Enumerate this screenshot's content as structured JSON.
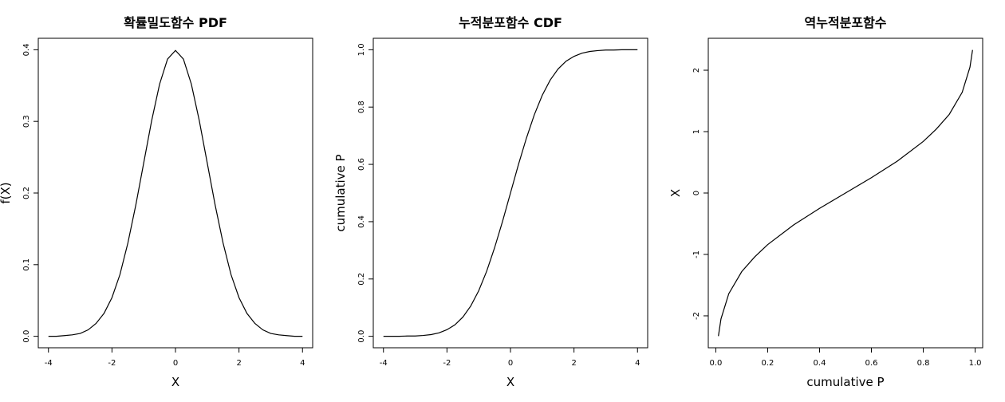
{
  "chart_data": [
    {
      "type": "line",
      "title": "확률밀도함수 PDF",
      "x_label": "X",
      "y_label": "f(X)",
      "color": "#000000",
      "x": [
        -4,
        -3.75,
        -3.5,
        -3.25,
        -3,
        -2.75,
        -2.5,
        -2.25,
        -2,
        -1.75,
        -1.5,
        -1.25,
        -1,
        -0.75,
        -0.5,
        -0.25,
        0,
        0.25,
        0.5,
        0.75,
        1,
        1.25,
        1.5,
        1.75,
        2,
        2.25,
        2.5,
        2.75,
        3,
        3.25,
        3.5,
        3.75,
        4
      ],
      "values": [
        0.0,
        0.0,
        0.001,
        0.002,
        0.004,
        0.009,
        0.018,
        0.032,
        0.054,
        0.086,
        0.13,
        0.183,
        0.242,
        0.301,
        0.352,
        0.387,
        0.399,
        0.387,
        0.352,
        0.301,
        0.242,
        0.183,
        0.13,
        0.086,
        0.054,
        0.032,
        0.018,
        0.009,
        0.004,
        0.002,
        0.001,
        0.0,
        0.0
      ],
      "xlim": [
        -4.32,
        4.32
      ],
      "ylim": [
        -0.016,
        0.416
      ],
      "xticks": [
        -4,
        -2,
        0,
        2,
        4
      ],
      "yticks": [
        {
          "value": 0,
          "label": "0.0"
        },
        0.1,
        0.2,
        0.3,
        0.4
      ]
    },
    {
      "type": "line",
      "title": "누적분포함수 CDF",
      "x_label": "X",
      "y_label": "cumulative P",
      "color": "#000000",
      "x": [
        -4,
        -3.75,
        -3.5,
        -3.25,
        -3,
        -2.75,
        -2.5,
        -2.25,
        -2,
        -1.75,
        -1.5,
        -1.25,
        -1,
        -0.75,
        -0.5,
        -0.25,
        0,
        0.25,
        0.5,
        0.75,
        1,
        1.25,
        1.5,
        1.75,
        2,
        2.25,
        2.5,
        2.75,
        3,
        3.25,
        3.5,
        3.75,
        4
      ],
      "values": [
        0.0,
        0.0,
        0.0,
        0.001,
        0.001,
        0.003,
        0.006,
        0.012,
        0.023,
        0.04,
        0.067,
        0.106,
        0.159,
        0.227,
        0.309,
        0.401,
        0.5,
        0.599,
        0.691,
        0.773,
        0.841,
        0.894,
        0.933,
        0.96,
        0.977,
        0.988,
        0.994,
        0.997,
        0.999,
        0.999,
        1.0,
        1.0,
        1.0
      ],
      "xlim": [
        -4.32,
        4.32
      ],
      "ylim": [
        -0.04,
        1.04
      ],
      "xticks": [
        -4,
        -2,
        0,
        2,
        4
      ],
      "yticks": [
        {
          "value": 0,
          "label": "0.0"
        },
        0.2,
        0.4,
        0.6,
        0.8,
        {
          "value": 1,
          "label": "1.0"
        }
      ]
    },
    {
      "type": "line",
      "title": "역누적분포함수",
      "x_label": "cumulative P",
      "y_label": "X",
      "color": "#000000",
      "x": [
        0.01,
        0.02,
        0.05,
        0.1,
        0.15,
        0.2,
        0.3,
        0.4,
        0.5,
        0.6,
        0.7,
        0.8,
        0.85,
        0.9,
        0.95,
        0.98,
        0.99
      ],
      "values": [
        -2.33,
        -2.05,
        -1.64,
        -1.28,
        -1.04,
        -0.84,
        -0.52,
        -0.25,
        0,
        0.25,
        0.52,
        0.84,
        1.04,
        1.28,
        1.64,
        2.05,
        2.33
      ],
      "xlim": [
        -0.029,
        1.029
      ],
      "ylim": [
        -2.52,
        2.52
      ],
      "xticks": [
        {
          "value": 0,
          "label": "0.0"
        },
        0.2,
        0.4,
        0.6,
        0.8,
        {
          "value": 1,
          "label": "1.0"
        }
      ],
      "yticks": [
        -2,
        -1,
        0,
        1,
        2
      ]
    }
  ]
}
